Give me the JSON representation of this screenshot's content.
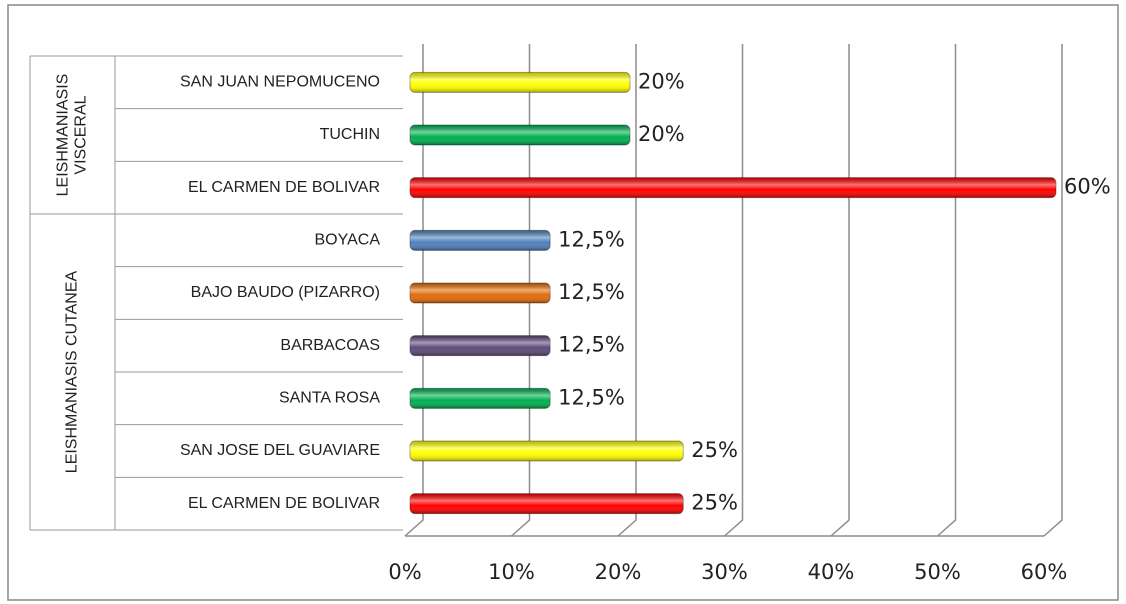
{
  "chart_data": {
    "type": "bar",
    "orientation": "horizontal",
    "categories": [
      "SAN JUAN NEPOMUCENO",
      "TUCHIN",
      "EL CARMEN DE BOLIVAR",
      "BOYACA",
      "BAJO BAUDO (PIZARRO)",
      "BARBACOAS",
      "SANTA ROSA",
      "SAN JOSE DEL GUAVIARE",
      "EL CARMEN DE BOLIVAR"
    ],
    "values": [
      20,
      20,
      60,
      12.5,
      12.5,
      12.5,
      12.5,
      25,
      25
    ],
    "value_labels": [
      "20%",
      "20%",
      "60%",
      "12,5%",
      "12,5%",
      "12,5%",
      "12,5%",
      "25%",
      "25%"
    ],
    "colors": [
      "#ffff00",
      "#00b050",
      "#ff0000",
      "#4f81bd",
      "#e36c09",
      "#5f497a",
      "#00b050",
      "#ffff00",
      "#ff0000"
    ],
    "groups": [
      {
        "label": [
          "LEISHMANIASIS",
          "VISCERAL"
        ],
        "size": 3
      },
      {
        "label": [
          "LEISHMANIASIS CUTANEA"
        ],
        "size": 6
      }
    ],
    "xlim": [
      0,
      60
    ],
    "xticks": [
      {
        "value": 0,
        "label": "0%"
      },
      {
        "value": 10,
        "label": "10%"
      },
      {
        "value": 20,
        "label": "20%"
      },
      {
        "value": 30,
        "label": "30%"
      },
      {
        "value": 40,
        "label": "40%"
      },
      {
        "value": 50,
        "label": "50%"
      },
      {
        "value": 60,
        "label": "60%"
      }
    ],
    "grid": true
  }
}
